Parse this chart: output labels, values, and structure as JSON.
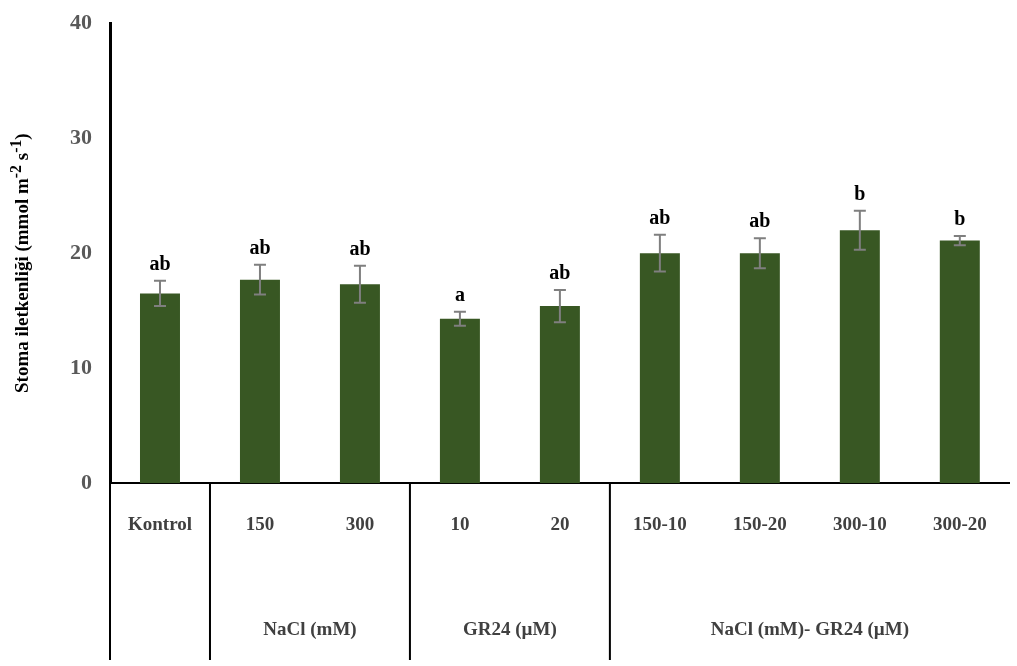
{
  "chart_data": {
    "type": "bar",
    "ylabel": "Stoma iletkenliği (mmol m$^{-2}$ s$^{-1}$)",
    "categories": [
      "Kontrol",
      "150",
      "300",
      "10",
      "20",
      "150-10",
      "150-20",
      "300-10",
      "300-20"
    ],
    "values": [
      16.5,
      17.7,
      17.3,
      14.3,
      15.4,
      20.0,
      20.0,
      22.0,
      21.1
    ],
    "errors": [
      1.1,
      1.3,
      1.6,
      0.6,
      1.4,
      1.6,
      1.3,
      1.7,
      0.4
    ],
    "color": "#385723",
    "ylim": [
      0,
      40
    ],
    "yticks": [
      0,
      10,
      20,
      30,
      40
    ],
    "grid": false,
    "legend": false,
    "annotations": [
      {
        "text": "ab",
        "x": "Kontrol",
        "y": 17.6
      },
      {
        "text": "ab",
        "x": "150",
        "y": 19.0
      },
      {
        "text": "ab",
        "x": "300",
        "y": 18.9
      },
      {
        "text": "a",
        "x": "10",
        "y": 14.9
      },
      {
        "text": "ab",
        "x": "20",
        "y": 16.8
      },
      {
        "text": "ab",
        "x": "150-10",
        "y": 21.6
      },
      {
        "text": "ab",
        "x": "150-20",
        "y": 21.3
      },
      {
        "text": "b",
        "x": "300-10",
        "y": 23.7
      },
      {
        "text": "b",
        "x": "300-20",
        "y": 21.5
      },
      "NaCl (mM)",
      "GR24 (µM)",
      "NaCl (mM)- GR24 (µM)"
    ]
  }
}
